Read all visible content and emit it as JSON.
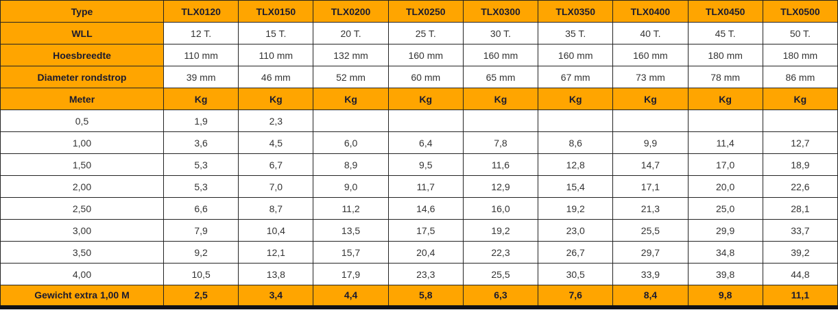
{
  "chart_data": {
    "type": "table",
    "rows": [
      {
        "variant": "header",
        "label": "Type",
        "values": [
          "TLX0120",
          "TLX0150",
          "TLX0200",
          "TLX0250",
          "TLX0300",
          "TLX0350",
          "TLX0400",
          "TLX0450",
          "TLX0500"
        ]
      },
      {
        "variant": "spec",
        "label": "WLL",
        "values": [
          "12 T.",
          "15 T.",
          "20 T.",
          "25 T.",
          "30 T.",
          "35 T.",
          "40 T.",
          "45 T.",
          "50 T."
        ]
      },
      {
        "variant": "spec",
        "label": "Hoesbreedte",
        "values": [
          "110 mm",
          "110 mm",
          "132 mm",
          "160 mm",
          "160 mm",
          "160 mm",
          "160 mm",
          "180 mm",
          "180 mm"
        ]
      },
      {
        "variant": "spec",
        "label": "Diameter rondstrop",
        "values": [
          "39 mm",
          "46 mm",
          "52 mm",
          "60 mm",
          "65 mm",
          "67 mm",
          "73 mm",
          "78 mm",
          "86 mm"
        ]
      },
      {
        "variant": "unit",
        "label": "Meter",
        "values": [
          "Kg",
          "Kg",
          "Kg",
          "Kg",
          "Kg",
          "Kg",
          "Kg",
          "Kg",
          "Kg"
        ]
      },
      {
        "variant": "data",
        "label": "0,5",
        "values": [
          "1,9",
          "2,3",
          "",
          "",
          "",
          "",
          "",
          "",
          ""
        ]
      },
      {
        "variant": "data",
        "label": "1,00",
        "values": [
          "3,6",
          "4,5",
          "6,0",
          "6,4",
          "7,8",
          "8,6",
          "9,9",
          "11,4",
          "12,7"
        ]
      },
      {
        "variant": "data",
        "label": "1,50",
        "values": [
          "5,3",
          "6,7",
          "8,9",
          "9,5",
          "11,6",
          "12,8",
          "14,7",
          "17,0",
          "18,9"
        ]
      },
      {
        "variant": "data",
        "label": "2,00",
        "values": [
          "5,3",
          "7,0",
          "9,0",
          "11,7",
          "12,9",
          "15,4",
          "17,1",
          "20,0",
          "22,6"
        ]
      },
      {
        "variant": "data",
        "label": "2,50",
        "values": [
          "6,6",
          "8,7",
          "11,2",
          "14,6",
          "16,0",
          "19,2",
          "21,3",
          "25,0",
          "28,1"
        ]
      },
      {
        "variant": "data",
        "label": "3,00",
        "values": [
          "7,9",
          "10,4",
          "13,5",
          "17,5",
          "19,2",
          "23,0",
          "25,5",
          "29,9",
          "33,7"
        ]
      },
      {
        "variant": "data",
        "label": "3,50",
        "values": [
          "9,2",
          "12,1",
          "15,7",
          "20,4",
          "22,3",
          "26,7",
          "29,7",
          "34,8",
          "39,2"
        ]
      },
      {
        "variant": "data",
        "label": "4,00",
        "values": [
          "10,5",
          "13,8",
          "17,9",
          "23,3",
          "25,5",
          "30,5",
          "33,9",
          "39,8",
          "44,8"
        ]
      },
      {
        "variant": "footer",
        "label": "Gewicht extra 1,00 M",
        "values": [
          "2,5",
          "3,4",
          "4,4",
          "5,8",
          "6,3",
          "7,6",
          "8,4",
          "9,8",
          "11,1"
        ]
      }
    ]
  },
  "colors": {
    "accent": "#FFA500",
    "header_text": "#1A1A2E",
    "body_text": "#333333",
    "grid_line": "#222222",
    "bottom_bar": "#111118"
  }
}
